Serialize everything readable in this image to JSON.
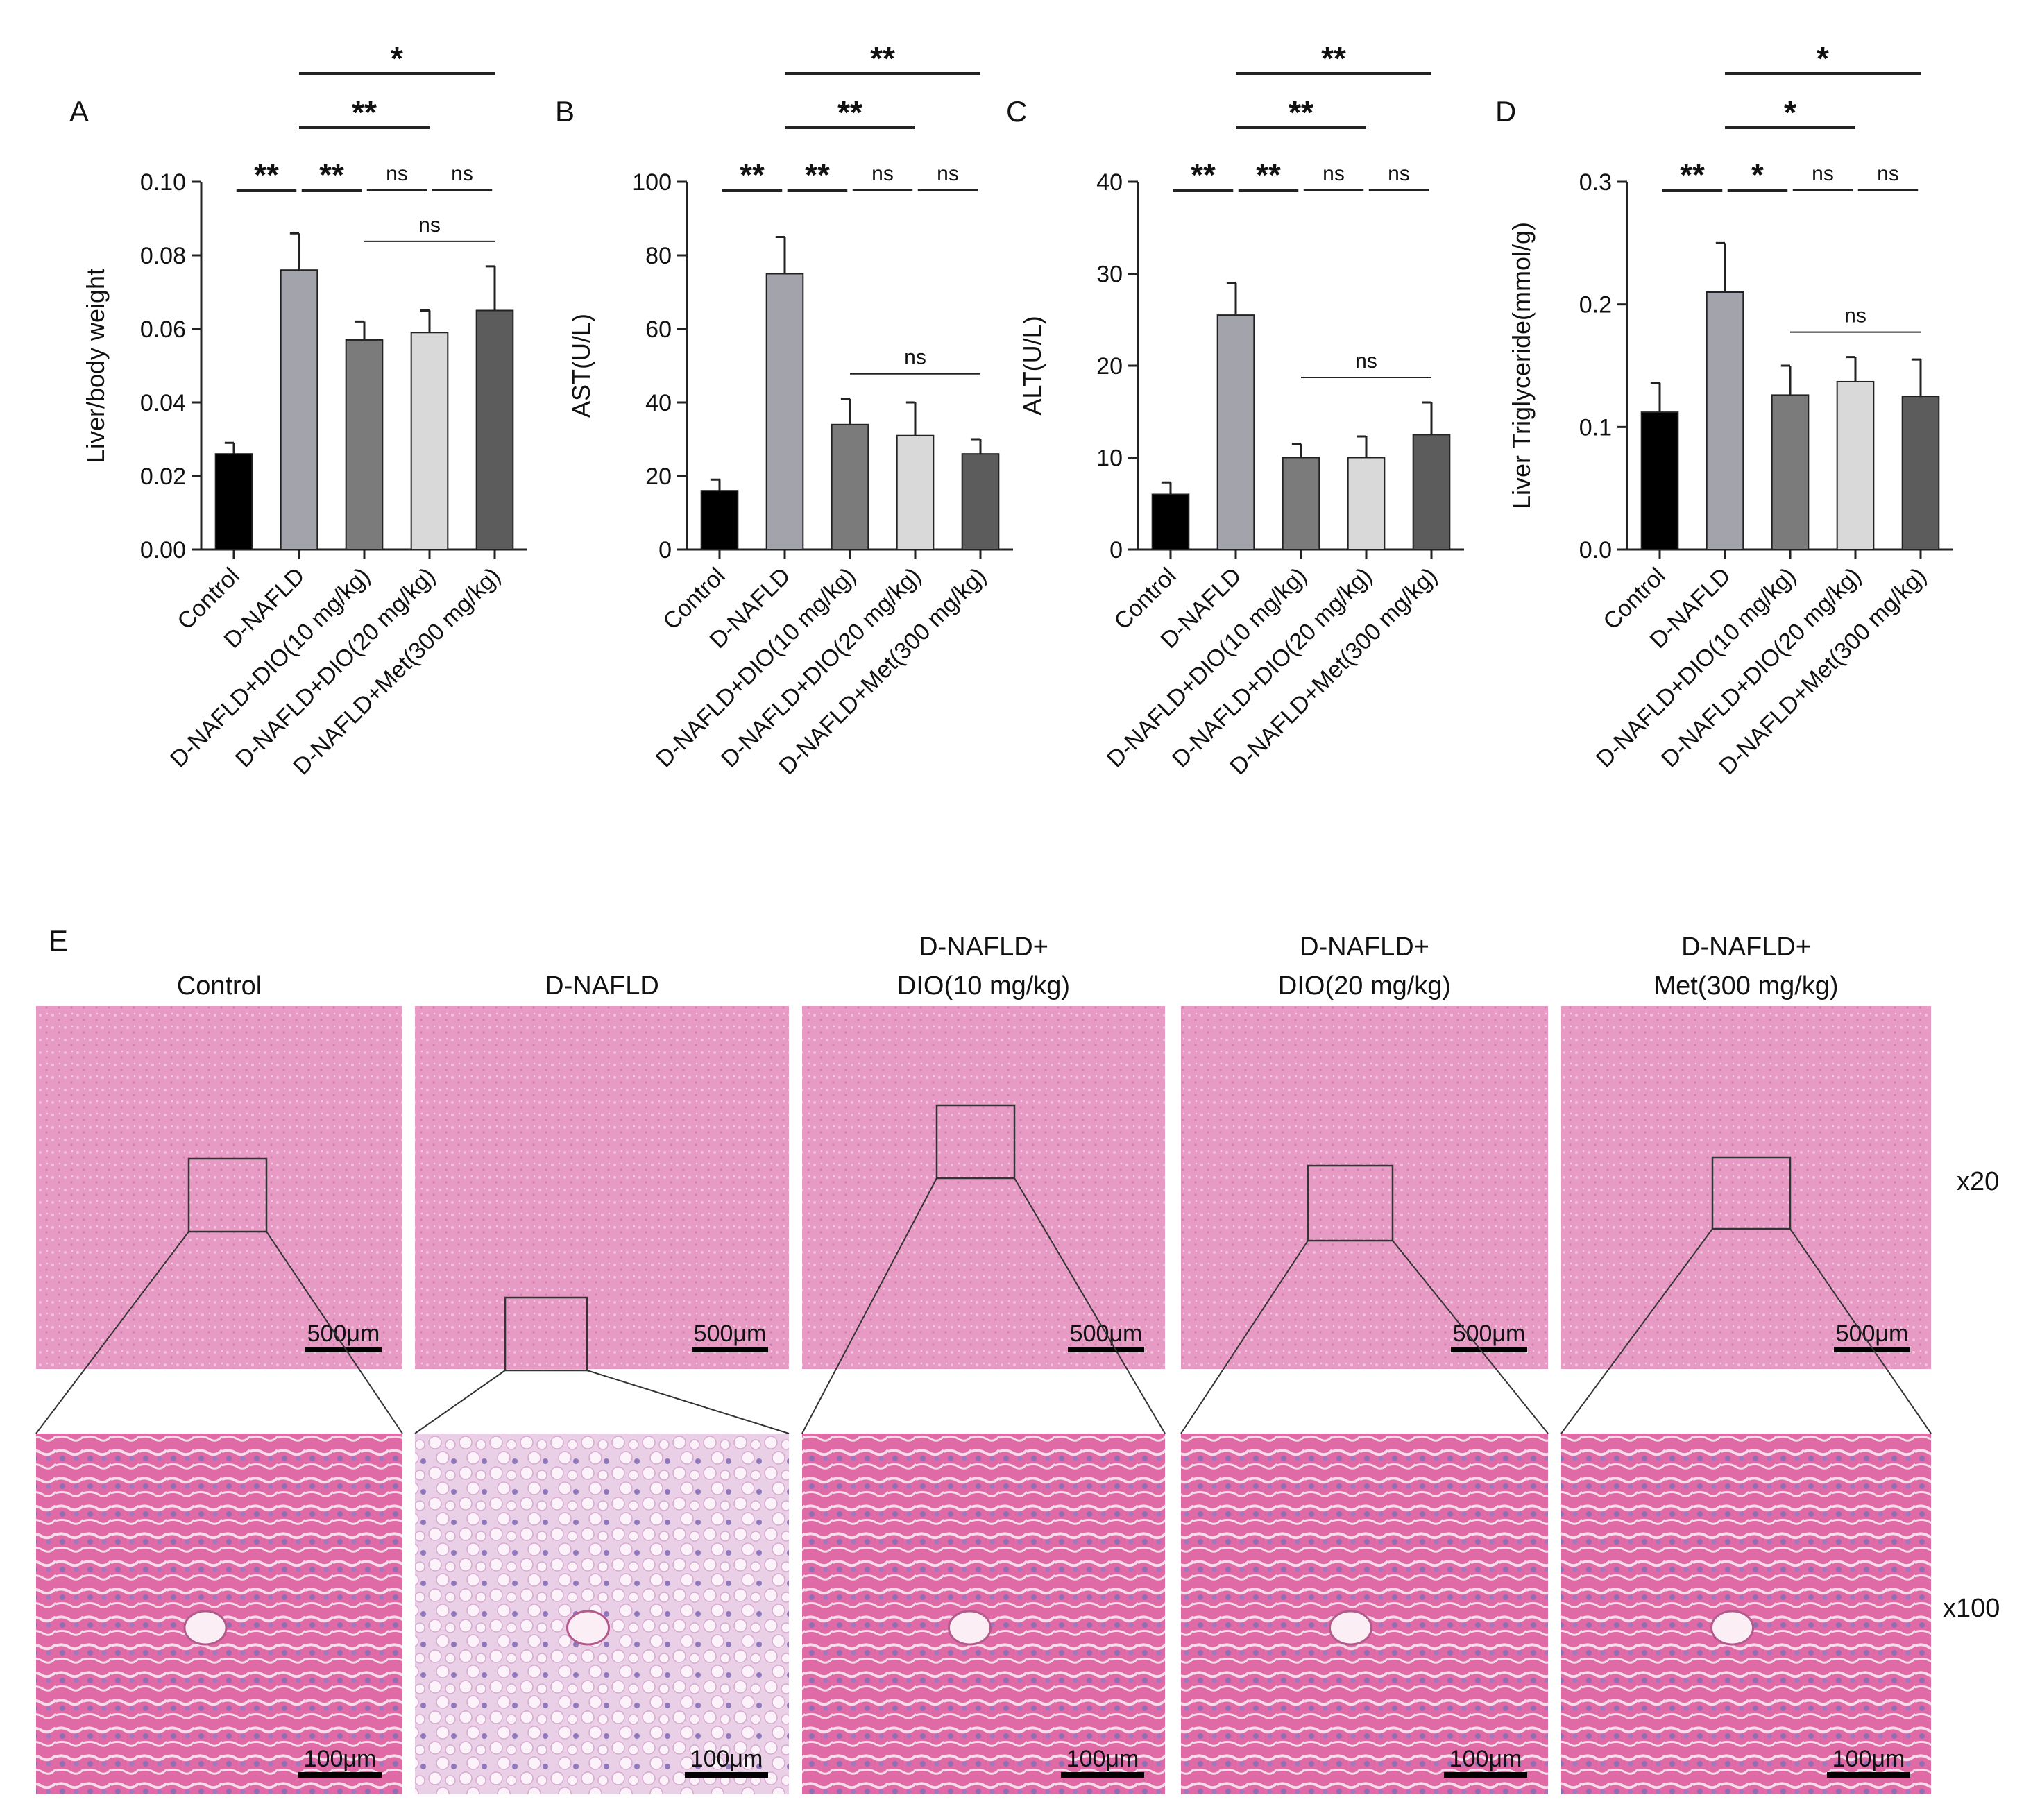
{
  "chart_data": [
    {
      "type": "bar",
      "panel_label": "A",
      "ylabel": "Liver/body weight",
      "categories": [
        "Control",
        "D-NAFLD",
        "D-NAFLD+DIO(10 mg/kg)",
        "D-NAFLD+DIO(20 mg/kg)",
        "D-NAFLD+Met(300 mg/kg)"
      ],
      "values": [
        0.026,
        0.076,
        0.057,
        0.059,
        0.065
      ],
      "errors": [
        0.003,
        0.01,
        0.005,
        0.006,
        0.012
      ],
      "colors": [
        "#000000",
        "#a3a3ab",
        "#7b7b7b",
        "#d9d9d9",
        "#5c5c5c"
      ],
      "ylim": [
        0,
        0.1
      ],
      "yticks": [
        {
          "value": 0,
          "label": "0.00"
        },
        {
          "value": 0.02,
          "label": "0.02"
        },
        {
          "value": 0.04,
          "label": "0.04"
        },
        {
          "value": 0.06,
          "label": "0.06"
        },
        {
          "value": 0.08,
          "label": "0.08"
        },
        {
          "value": 0.1,
          "label": "0.10"
        }
      ],
      "comparisons": [
        {
          "groups": [
            0,
            1
          ],
          "label": "**"
        },
        {
          "groups": [
            1,
            2
          ],
          "label": "**"
        },
        {
          "groups": [
            2,
            3
          ],
          "label": "ns"
        },
        {
          "groups": [
            3,
            4
          ],
          "label": "ns"
        },
        {
          "groups": [
            2,
            4
          ],
          "label": "ns"
        },
        {
          "groups": [
            1,
            3
          ],
          "label": "**"
        },
        {
          "groups": [
            1,
            4
          ],
          "label": "*"
        }
      ]
    },
    {
      "type": "bar",
      "panel_label": "B",
      "ylabel": "AST(U/L)",
      "categories": [
        "Control",
        "D-NAFLD",
        "D-NAFLD+DIO(10 mg/kg)",
        "D-NAFLD+DIO(20 mg/kg)",
        "D-NAFLD+Met(300 mg/kg)"
      ],
      "values": [
        16,
        75,
        34,
        31,
        26
      ],
      "errors": [
        3,
        10,
        7,
        9,
        4
      ],
      "colors": [
        "#000000",
        "#a3a3ab",
        "#7b7b7b",
        "#d9d9d9",
        "#5c5c5c"
      ],
      "ylim": [
        0,
        100
      ],
      "yticks": [
        0,
        20,
        40,
        60,
        80,
        100
      ],
      "comparisons": [
        {
          "groups": [
            0,
            1
          ],
          "label": "**"
        },
        {
          "groups": [
            1,
            2
          ],
          "label": "**"
        },
        {
          "groups": [
            2,
            3
          ],
          "label": "ns"
        },
        {
          "groups": [
            3,
            4
          ],
          "label": "ns"
        },
        {
          "groups": [
            2,
            4
          ],
          "label": "ns"
        },
        {
          "groups": [
            1,
            3
          ],
          "label": "**"
        },
        {
          "groups": [
            1,
            4
          ],
          "label": "**"
        }
      ]
    },
    {
      "type": "bar",
      "panel_label": "C",
      "ylabel": "ALT(U/L)",
      "categories": [
        "Control",
        "D-NAFLD",
        "D-NAFLD+DIO(10 mg/kg)",
        "D-NAFLD+DIO(20 mg/kg)",
        "D-NAFLD+Met(300 mg/kg)"
      ],
      "values": [
        6,
        25.5,
        10,
        10,
        12.5
      ],
      "errors": [
        1.3,
        3.5,
        1.5,
        2.3,
        3.5
      ],
      "colors": [
        "#000000",
        "#a3a3ab",
        "#7b7b7b",
        "#d9d9d9",
        "#5c5c5c"
      ],
      "ylim": [
        0,
        40
      ],
      "yticks": [
        0,
        10,
        20,
        30,
        40
      ],
      "comparisons": [
        {
          "groups": [
            0,
            1
          ],
          "label": "**"
        },
        {
          "groups": [
            1,
            2
          ],
          "label": "**"
        },
        {
          "groups": [
            2,
            3
          ],
          "label": "ns"
        },
        {
          "groups": [
            3,
            4
          ],
          "label": "ns"
        },
        {
          "groups": [
            2,
            4
          ],
          "label": "ns"
        },
        {
          "groups": [
            1,
            3
          ],
          "label": "**"
        },
        {
          "groups": [
            1,
            4
          ],
          "label": "**"
        }
      ]
    },
    {
      "type": "bar",
      "panel_label": "D",
      "ylabel": "Liver Triglyceride(mmol/g)",
      "categories": [
        "Control",
        "D-NAFLD",
        "D-NAFLD+DIO(10 mg/kg)",
        "D-NAFLD+DIO(20 mg/kg)",
        "D-NAFLD+Met(300 mg/kg)"
      ],
      "values": [
        0.112,
        0.21,
        0.126,
        0.137,
        0.125
      ],
      "errors": [
        0.024,
        0.04,
        0.024,
        0.02,
        0.03
      ],
      "colors": [
        "#000000",
        "#a3a3ab",
        "#7b7b7b",
        "#d9d9d9",
        "#5c5c5c"
      ],
      "ylim": [
        0,
        0.3
      ],
      "yticks": [
        {
          "value": 0,
          "label": "0.0"
        },
        {
          "value": 0.1,
          "label": "0.1"
        },
        {
          "value": 0.2,
          "label": "0.2"
        },
        {
          "value": 0.3,
          "label": "0.3"
        }
      ],
      "comparisons": [
        {
          "groups": [
            0,
            1
          ],
          "label": "**"
        },
        {
          "groups": [
            1,
            2
          ],
          "label": "*"
        },
        {
          "groups": [
            2,
            3
          ],
          "label": "ns"
        },
        {
          "groups": [
            3,
            4
          ],
          "label": "ns"
        },
        {
          "groups": [
            2,
            4
          ],
          "label": "ns"
        },
        {
          "groups": [
            1,
            3
          ],
          "label": "*"
        },
        {
          "groups": [
            1,
            4
          ],
          "label": "*"
        }
      ]
    }
  ],
  "histology": {
    "panel_label": "E",
    "columns": [
      {
        "title": [
          "Control"
        ]
      },
      {
        "title": [
          "D-NAFLD"
        ]
      },
      {
        "title": [
          "D-NAFLD+",
          "DIO(10 mg/kg)"
        ]
      },
      {
        "title": [
          "D-NAFLD+",
          "DIO(20 mg/kg)"
        ]
      },
      {
        "title": [
          "D-NAFLD+",
          "Met(300 mg/kg)"
        ]
      }
    ],
    "rows": [
      {
        "magnification": "x20",
        "scale_bar": "500μm"
      },
      {
        "magnification": "x100",
        "scale_bar": "100μm"
      }
    ]
  }
}
